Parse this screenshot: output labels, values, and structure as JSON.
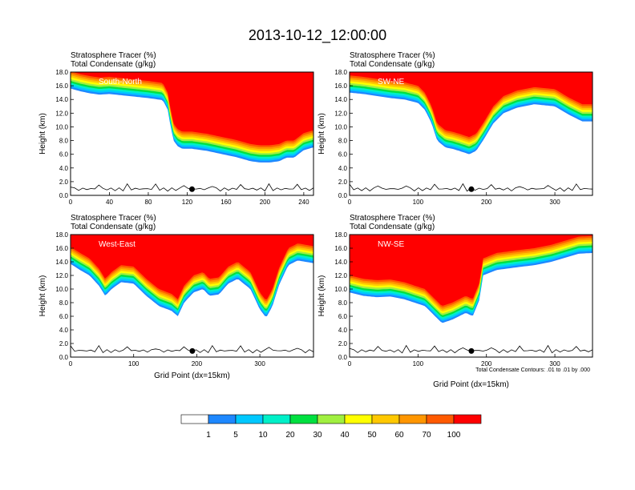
{
  "title": "2013-10-12_12:00:00",
  "field_labels": [
    "Stratosphere Tracer   (%)",
    "Total Condensate   (g/kg)"
  ],
  "contour_note": "Total Condensate Contours: .01 to .01 by .000",
  "chart_data": [
    {
      "type": "heatmap",
      "panel_label": "South-North",
      "ylabel": "Height (km)",
      "xlabel": "",
      "xlim": [
        0,
        250
      ],
      "ylim": [
        0,
        18
      ],
      "x_ticks": [
        0,
        40,
        80,
        120,
        160,
        200,
        240
      ],
      "y_ticks": [
        0.0,
        2.0,
        4.0,
        6.0,
        8.0,
        10.0,
        12.0,
        14.0,
        16.0,
        18.0
      ],
      "marker_x": 125,
      "tracer_base_km": [
        [
          0,
          15.6
        ],
        [
          10,
          15.2
        ],
        [
          20,
          14.9
        ],
        [
          30,
          14.7
        ],
        [
          40,
          14.8
        ],
        [
          60,
          14.5
        ],
        [
          80,
          14.2
        ],
        [
          95,
          13.9
        ],
        [
          100,
          12.5
        ],
        [
          103,
          10
        ],
        [
          106,
          8
        ],
        [
          110,
          7.2
        ],
        [
          115,
          6.8
        ],
        [
          125,
          6.8
        ],
        [
          140,
          6.5
        ],
        [
          150,
          6.2
        ],
        [
          170,
          5.6
        ],
        [
          185,
          5.0
        ],
        [
          195,
          4.8
        ],
        [
          205,
          4.8
        ],
        [
          215,
          5.0
        ],
        [
          222,
          5.5
        ],
        [
          230,
          5.5
        ],
        [
          240,
          6.6
        ],
        [
          250,
          7.0
        ]
      ],
      "tracer_gradient_km": 2.5
    },
    {
      "type": "heatmap",
      "panel_label": "SW-NE",
      "ylabel": "Height (km)",
      "xlabel": "",
      "xlim": [
        0,
        355
      ],
      "ylim": [
        0,
        18
      ],
      "x_ticks": [
        0,
        100,
        200,
        300
      ],
      "y_ticks": [
        0.0,
        2.0,
        4.0,
        6.0,
        8.0,
        10.0,
        12.0,
        14.0,
        16.0,
        18.0
      ],
      "marker_x": 178,
      "tracer_base_km": [
        [
          0,
          15
        ],
        [
          20,
          14.8
        ],
        [
          40,
          14.5
        ],
        [
          60,
          14.2
        ],
        [
          80,
          14.0
        ],
        [
          100,
          13.5
        ],
        [
          110,
          12.5
        ],
        [
          120,
          10.5
        ],
        [
          128,
          8.0
        ],
        [
          140,
          7.0
        ],
        [
          150,
          6.8
        ],
        [
          160,
          6.5
        ],
        [
          175,
          6.0
        ],
        [
          185,
          6.5
        ],
        [
          195,
          8.0
        ],
        [
          210,
          10.5
        ],
        [
          225,
          12.0
        ],
        [
          245,
          12.8
        ],
        [
          270,
          13.3
        ],
        [
          300,
          13.0
        ],
        [
          320,
          11.8
        ],
        [
          340,
          10.8
        ],
        [
          355,
          10.8
        ]
      ],
      "tracer_gradient_km": 2.5
    },
    {
      "type": "heatmap",
      "panel_label": "West-East",
      "ylabel": "Height (km)",
      "xlabel": "Grid Point (dx=15km)",
      "xlim": [
        0,
        385
      ],
      "ylim": [
        0,
        18
      ],
      "x_ticks": [
        0,
        100,
        200,
        300
      ],
      "y_ticks": [
        0.0,
        2.0,
        4.0,
        6.0,
        8.0,
        10.0,
        12.0,
        14.0,
        16.0,
        18.0
      ],
      "marker_x": 193,
      "tracer_base_km": [
        [
          0,
          13.7
        ],
        [
          15,
          12.8
        ],
        [
          30,
          12.0
        ],
        [
          45,
          10.5
        ],
        [
          55,
          9.0
        ],
        [
          65,
          10.0
        ],
        [
          80,
          11.0
        ],
        [
          100,
          10.8
        ],
        [
          120,
          9.0
        ],
        [
          140,
          7.5
        ],
        [
          160,
          6.8
        ],
        [
          170,
          6.0
        ],
        [
          180,
          8.0
        ],
        [
          195,
          9.5
        ],
        [
          210,
          10.0
        ],
        [
          220,
          9.0
        ],
        [
          235,
          9.2
        ],
        [
          250,
          10.8
        ],
        [
          265,
          11.5
        ],
        [
          285,
          10.0
        ],
        [
          300,
          7.0
        ],
        [
          310,
          5.8
        ],
        [
          320,
          7.5
        ],
        [
          330,
          10.5
        ],
        [
          345,
          13.5
        ],
        [
          360,
          14.2
        ],
        [
          385,
          13.8
        ]
      ],
      "tracer_gradient_km": 2.5
    },
    {
      "type": "heatmap",
      "panel_label": "NW-SE",
      "ylabel": "Height (km)",
      "xlabel": "Grid Point (dx=15km)",
      "xlim": [
        0,
        355
      ],
      "ylim": [
        0,
        18
      ],
      "x_ticks": [
        0,
        100,
        200,
        300
      ],
      "y_ticks": [
        0.0,
        2.0,
        4.0,
        6.0,
        8.0,
        10.0,
        12.0,
        14.0,
        16.0,
        18.0
      ],
      "marker_x": 178,
      "tracer_base_km": [
        [
          0,
          9.5
        ],
        [
          20,
          9.0
        ],
        [
          40,
          8.8
        ],
        [
          60,
          8.9
        ],
        [
          80,
          8.5
        ],
        [
          95,
          8.0
        ],
        [
          110,
          7.5
        ],
        [
          125,
          6.0
        ],
        [
          135,
          5.0
        ],
        [
          150,
          5.5
        ],
        [
          170,
          6.5
        ],
        [
          180,
          6.0
        ],
        [
          190,
          8.5
        ],
        [
          195,
          12.0
        ],
        [
          215,
          12.8
        ],
        [
          245,
          13.2
        ],
        [
          270,
          13.5
        ],
        [
          295,
          14.0
        ],
        [
          315,
          14.6
        ],
        [
          335,
          15.2
        ],
        [
          355,
          15.3
        ]
      ],
      "tracer_gradient_km": 2.5
    }
  ],
  "colorbar": {
    "labels": [
      "1",
      "5",
      "10",
      "20",
      "30",
      "40",
      "50",
      "60",
      "70",
      "100"
    ],
    "colors": [
      "#ffffff",
      "#1e88ff",
      "#00c8ff",
      "#00f0c8",
      "#00e040",
      "#a0f040",
      "#ffff00",
      "#ffc800",
      "#ff9600",
      "#ff5a00",
      "#ff0000"
    ]
  }
}
